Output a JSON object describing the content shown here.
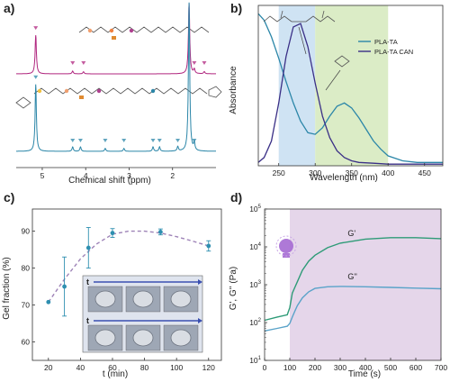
{
  "colors": {
    "magenta": "#b0267f",
    "teal": "#2b86a8",
    "navy": "#3a2f86",
    "green_line": "#2e9b77",
    "blue_line": "#5aa3c9",
    "gel_points": "#2e8fb0",
    "gel_dash": "#9e83b7",
    "blue_band": "#cfe3f3",
    "green_band": "#dbecc6",
    "purple_band": "#e5d6ea",
    "bulb": "#a56ad3"
  },
  "chart_data": [
    {
      "panel": "a)",
      "type": "line",
      "xlabel": "Chemical shift (ppm)",
      "xlim": [
        5.6,
        1.0
      ],
      "reversed_x": true,
      "x_ticks": [
        "5",
        "4",
        "3",
        "2"
      ],
      "series": [
        {
          "color": "magenta",
          "peaks": [
            {
              "x": 5.15,
              "h": 0.55
            },
            {
              "x": 4.3,
              "h": 0.04
            },
            {
              "x": 4.05,
              "h": 0.03
            },
            {
              "x": 1.62,
              "h": 1.0
            },
            {
              "x": 1.5,
              "h": 0.06
            },
            {
              "x": 1.27,
              "h": 0.03
            }
          ],
          "markers": [
            5.15,
            4.3,
            4.05,
            1.62,
            1.5,
            1.27
          ]
        },
        {
          "color": "teal",
          "peaks": [
            {
              "x": 5.15,
              "h": 0.45
            },
            {
              "x": 4.3,
              "h": 0.03
            },
            {
              "x": 4.12,
              "h": 0.03
            },
            {
              "x": 3.55,
              "h": 0.02
            },
            {
              "x": 3.12,
              "h": 0.02
            },
            {
              "x": 2.45,
              "h": 0.03
            },
            {
              "x": 2.3,
              "h": 0.03
            },
            {
              "x": 1.88,
              "h": 0.03
            },
            {
              "x": 1.62,
              "h": 1.0
            },
            {
              "x": 1.5,
              "h": 0.05
            }
          ],
          "markers": [
            5.15,
            4.3,
            4.12,
            3.55,
            3.12,
            2.45,
            2.3,
            1.88,
            1.62,
            1.5
          ]
        }
      ]
    },
    {
      "panel": "b)",
      "type": "line",
      "xlabel": "Wavelength (nm)",
      "ylabel": "Absorbance",
      "xlim": [
        222,
        475
      ],
      "x_ticks": [
        250,
        300,
        350,
        400,
        450
      ],
      "bands": [
        {
          "from": 250,
          "to": 300,
          "color": "blue_band"
        },
        {
          "from": 300,
          "to": 400,
          "color": "green_band"
        }
      ],
      "series": [
        {
          "name": "PLA-TA",
          "color": "teal",
          "x": [
            222,
            230,
            240,
            250,
            260,
            270,
            280,
            290,
            300,
            310,
            320,
            330,
            340,
            350,
            360,
            370,
            380,
            390,
            400,
            420,
            440,
            475
          ],
          "y": [
            0.92,
            0.88,
            0.78,
            0.65,
            0.51,
            0.38,
            0.27,
            0.2,
            0.19,
            0.23,
            0.3,
            0.36,
            0.38,
            0.35,
            0.29,
            0.22,
            0.15,
            0.1,
            0.06,
            0.03,
            0.02,
            0.02
          ]
        },
        {
          "name": "PLA-TA CAN",
          "color": "navy",
          "x": [
            222,
            230,
            240,
            250,
            260,
            270,
            280,
            290,
            300,
            310,
            320,
            330,
            340,
            350,
            360,
            380,
            400,
            420,
            475
          ],
          "y": [
            0.02,
            0.05,
            0.15,
            0.38,
            0.66,
            0.84,
            0.86,
            0.72,
            0.5,
            0.3,
            0.17,
            0.09,
            0.05,
            0.03,
            0.02,
            0.015,
            0.01,
            0.01,
            0.01
          ]
        }
      ]
    },
    {
      "panel": "c)",
      "type": "scatter",
      "xlabel": "t (min)",
      "ylabel": "Gel fraction (%)",
      "xlim": [
        10,
        128
      ],
      "ylim": [
        55,
        96
      ],
      "x_ticks": [
        20,
        40,
        60,
        80,
        100,
        120
      ],
      "y_ticks": [
        60,
        70,
        80,
        90
      ],
      "points": [
        {
          "x": 20,
          "y": 70.8,
          "err": 0
        },
        {
          "x": 30,
          "y": 75,
          "err": 8
        },
        {
          "x": 45,
          "y": 85.5,
          "err": 5.5
        },
        {
          "x": 60,
          "y": 89.5,
          "err": 1.2
        },
        {
          "x": 90,
          "y": 89.8,
          "err": 0.8
        },
        {
          "x": 120,
          "y": 86,
          "err": 1.4
        }
      ],
      "fit_x": [
        20,
        30,
        40,
        50,
        60,
        70,
        80,
        90,
        100,
        110,
        120
      ],
      "fit_y": [
        70.8,
        77,
        82.5,
        86.5,
        89.2,
        90,
        90,
        89.5,
        88.5,
        87.3,
        86
      ],
      "inset_labels": [
        "t",
        "t"
      ]
    },
    {
      "panel": "d)",
      "type": "line",
      "xlabel": "Time (s)",
      "ylabel": "G', G'' (Pa)",
      "xlim": [
        0,
        700
      ],
      "ylim_log10": [
        1,
        5
      ],
      "log_y": true,
      "x_ticks": [
        0,
        100,
        200,
        300,
        400,
        500,
        600,
        700
      ],
      "y_tick_exponents": [
        1,
        2,
        3,
        4,
        5
      ],
      "band": {
        "from": 100,
        "to": 700,
        "color": "purple_band"
      },
      "series": [
        {
          "name": "G'",
          "color": "green_line",
          "x": [
            0,
            50,
            90,
            100,
            110,
            120,
            130,
            150,
            175,
            200,
            250,
            300,
            400,
            500,
            600,
            700
          ],
          "y": [
            115,
            140,
            160,
            250,
            600,
            850,
            1200,
            2400,
            4200,
            6000,
            9500,
            12500,
            16000,
            17500,
            17500,
            16500
          ]
        },
        {
          "name": "G''",
          "color": "blue_line",
          "x": [
            0,
            50,
            90,
            100,
            110,
            120,
            130,
            150,
            175,
            200,
            250,
            300,
            400,
            500,
            600,
            700
          ],
          "y": [
            60,
            70,
            80,
            95,
            140,
            200,
            280,
            450,
            650,
            800,
            880,
            900,
            880,
            850,
            810,
            780
          ]
        }
      ]
    }
  ]
}
